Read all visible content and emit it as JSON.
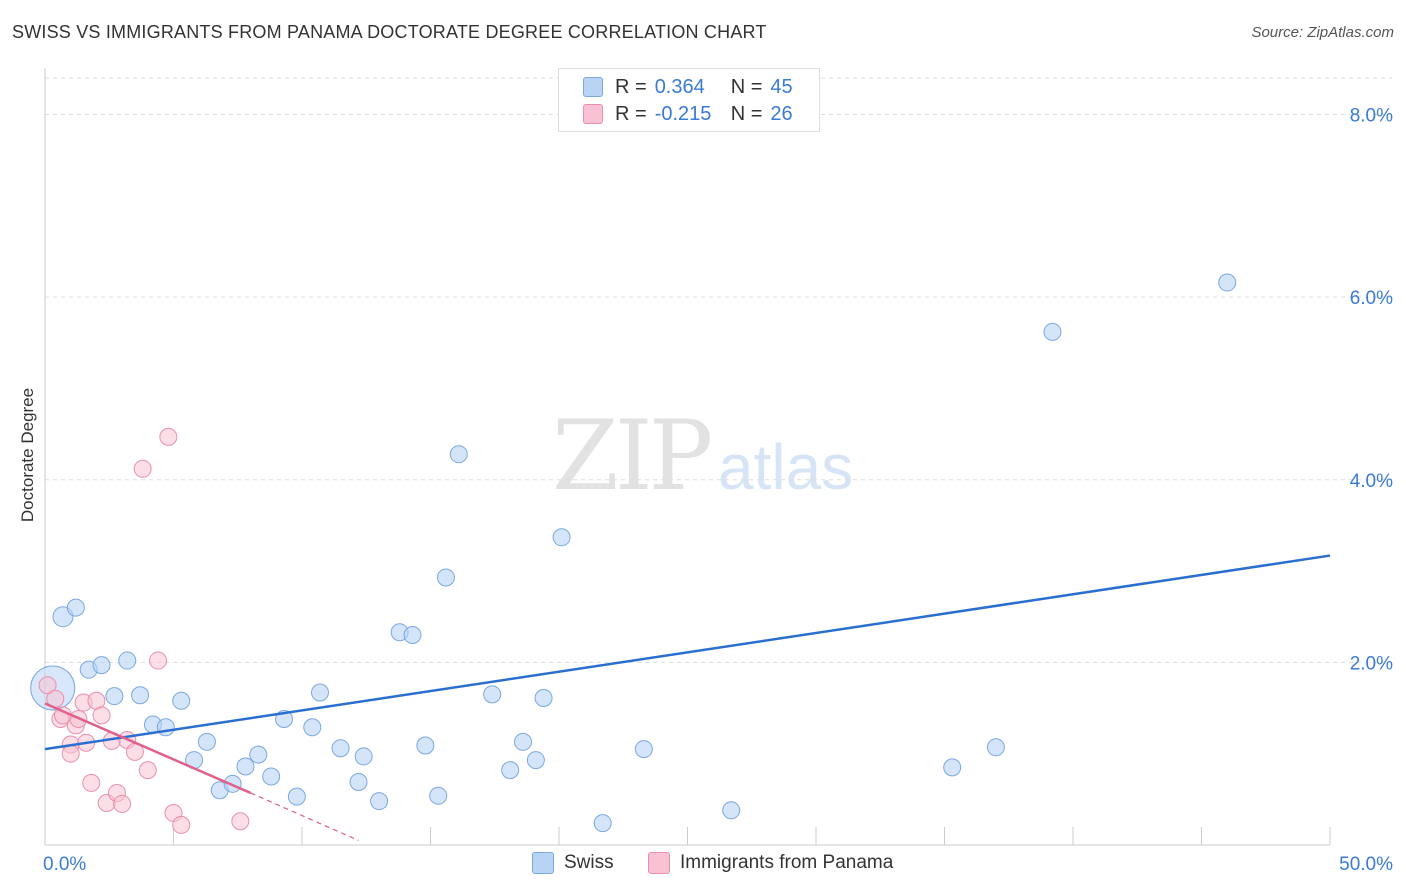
{
  "header": {
    "title": "SWISS VS IMMIGRANTS FROM PANAMA DOCTORATE DEGREE CORRELATION CHART",
    "source": "Source: ZipAtlas.com"
  },
  "watermark": {
    "zip": "ZIP",
    "atlas": "atlas"
  },
  "colors": {
    "swiss_fill": "#b9d3f5",
    "swiss_stroke": "#7ba8e0",
    "swiss_line": "#2a6fd0",
    "panama_fill": "#f8c2d2",
    "panama_stroke": "#ea8fae",
    "panama_line": "#e0608e",
    "axis_text": "#3a7bd5",
    "grid": "#dddddd"
  },
  "legend_top": {
    "rows": [
      {
        "r_label": "R =",
        "r_value": "0.364",
        "n_label": "N =",
        "n_value": "45"
      },
      {
        "r_label": "R =",
        "r_value": "-0.215",
        "n_label": "N =",
        "n_value": "26"
      }
    ]
  },
  "legend_bottom": {
    "swiss": "Swiss",
    "panama": "Immigrants from Panama"
  },
  "chart_data": {
    "type": "scatter",
    "title": "SWISS VS IMMIGRANTS FROM PANAMA DOCTORATE DEGREE CORRELATION CHART",
    "xlabel": "",
    "ylabel": "Doctorate Degree",
    "xlim": [
      0,
      50
    ],
    "ylim": [
      0,
      8.4
    ],
    "x_tick_labels": [
      "0.0%",
      "50.0%"
    ],
    "y_ticks": [
      2,
      4,
      6,
      8
    ],
    "y_tick_labels": [
      "2.0%",
      "4.0%",
      "6.0%",
      "8.0%"
    ],
    "grid": true,
    "legend": "top-center",
    "series": [
      {
        "name": "Swiss",
        "r": 0.364,
        "n": 45,
        "points": [
          [
            0.3,
            1.72
          ],
          [
            0.7,
            2.5
          ],
          [
            1.2,
            2.6
          ],
          [
            1.7,
            1.92
          ],
          [
            2.2,
            1.97
          ],
          [
            2.7,
            1.63
          ],
          [
            3.2,
            2.02
          ],
          [
            3.7,
            1.64
          ],
          [
            4.2,
            1.32
          ],
          [
            4.7,
            1.29
          ],
          [
            5.3,
            1.58
          ],
          [
            5.8,
            0.93
          ],
          [
            6.3,
            1.13
          ],
          [
            6.8,
            0.6
          ],
          [
            7.3,
            0.67
          ],
          [
            7.8,
            0.86
          ],
          [
            8.3,
            0.99
          ],
          [
            8.8,
            0.75
          ],
          [
            9.3,
            1.38
          ],
          [
            9.8,
            0.53
          ],
          [
            10.4,
            1.29
          ],
          [
            10.7,
            1.67
          ],
          [
            11.5,
            1.06
          ],
          [
            12.2,
            0.69
          ],
          [
            12.4,
            0.97
          ],
          [
            13.0,
            0.48
          ],
          [
            13.8,
            2.33
          ],
          [
            14.3,
            2.3
          ],
          [
            14.8,
            1.09
          ],
          [
            15.3,
            0.54
          ],
          [
            15.6,
            2.93
          ],
          [
            16.1,
            4.28
          ],
          [
            17.4,
            1.65
          ],
          [
            18.1,
            0.82
          ],
          [
            18.6,
            1.13
          ],
          [
            19.1,
            0.93
          ],
          [
            19.4,
            1.61
          ],
          [
            20.1,
            3.37
          ],
          [
            21.7,
            0.24
          ],
          [
            23.3,
            1.05
          ],
          [
            26.7,
            0.38
          ],
          [
            35.3,
            0.85
          ],
          [
            37.0,
            1.07
          ],
          [
            39.2,
            5.62
          ],
          [
            46.0,
            6.16
          ]
        ],
        "trend": {
          "x0": 0,
          "y0": 1.05,
          "x1": 50,
          "y1": 3.17
        }
      },
      {
        "name": "Immigrants from Panama",
        "r": -0.215,
        "n": 26,
        "points": [
          [
            0.1,
            1.75
          ],
          [
            0.4,
            1.6
          ],
          [
            0.6,
            1.38
          ],
          [
            0.7,
            1.42
          ],
          [
            1.0,
            1.1
          ],
          [
            1.2,
            1.31
          ],
          [
            1.3,
            1.38
          ],
          [
            1.5,
            1.56
          ],
          [
            1.6,
            1.12
          ],
          [
            1.8,
            0.68
          ],
          [
            2.0,
            1.58
          ],
          [
            2.2,
            1.42
          ],
          [
            2.4,
            0.46
          ],
          [
            2.6,
            1.14
          ],
          [
            2.8,
            0.57
          ],
          [
            3.0,
            0.45
          ],
          [
            3.2,
            1.15
          ],
          [
            3.5,
            1.02
          ],
          [
            3.8,
            4.12
          ],
          [
            4.0,
            0.82
          ],
          [
            4.4,
            2.02
          ],
          [
            4.8,
            4.47
          ],
          [
            5.0,
            0.35
          ],
          [
            5.3,
            0.22
          ],
          [
            7.6,
            0.26
          ],
          [
            1.0,
            1.0
          ]
        ],
        "trend": {
          "x0": 0,
          "y0": 1.55,
          "x1": 8.0,
          "y1": 0.57
        },
        "trend_dashed": {
          "x0": 8.0,
          "y0": 0.57,
          "x1": 12.2,
          "y1": 0.05
        }
      }
    ]
  }
}
